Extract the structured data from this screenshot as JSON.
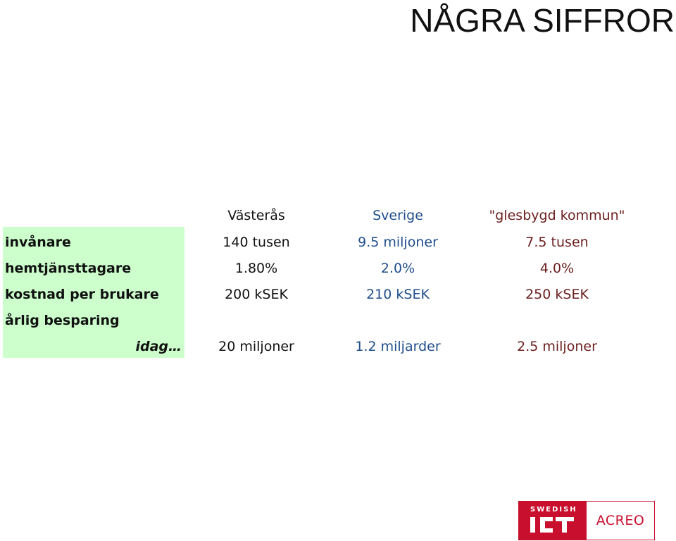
{
  "title": "NÅGRA SIFFROR",
  "table": {
    "columns": [
      {
        "header": "Västerås"
      },
      {
        "header": "Sverige"
      },
      {
        "header": "\"glesbygd kommun\""
      }
    ],
    "rows": [
      {
        "label": "invånare",
        "values": [
          "140 tusen",
          "9.5 miljoner",
          "7.5 tusen"
        ]
      },
      {
        "label": "hemtjänsttagare",
        "values": [
          "1.80%",
          "2.0%",
          "4.0%"
        ]
      },
      {
        "label": "kostnad per brukare",
        "values": [
          "200 kSEK",
          "210 kSEK",
          "250 kSEK"
        ]
      },
      {
        "label": "årlig besparing",
        "values": [
          "",
          "",
          ""
        ]
      },
      {
        "label": "idag…",
        "values": [
          "20 miljoner",
          "1.2 miljarder",
          "2.5 miljoner"
        ]
      }
    ]
  },
  "colors": {
    "label_band": "#ccffcc",
    "vasteras": "#111111",
    "sverige": "#1f4e8c",
    "glesbygd": "#6b1e1e",
    "logo_red": "#c8102e"
  },
  "logo": {
    "swedish_text": "SWEDISH",
    "ict_text": "ICT",
    "acreo_text": "ACREO"
  }
}
